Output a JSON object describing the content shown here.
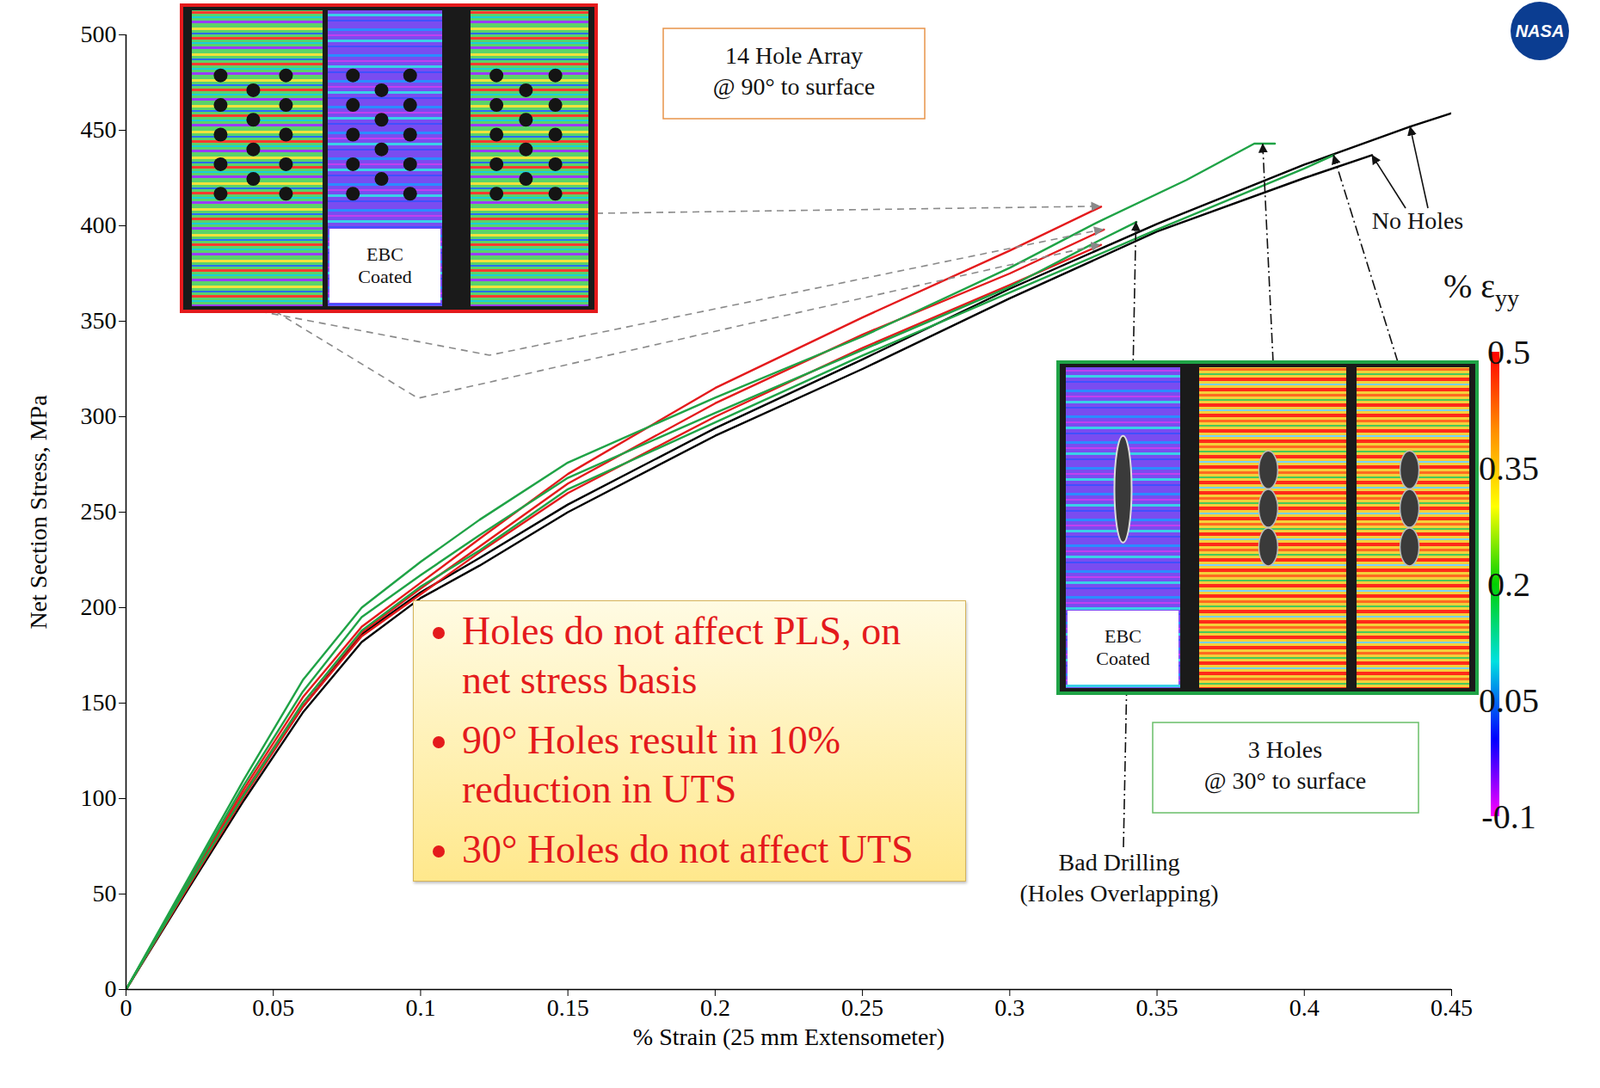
{
  "chart_data": {
    "type": "line",
    "xlabel": "% Strain (25 mm Extensometer)",
    "ylabel": "Net Section Stress, MPa",
    "xlim": [
      0,
      0.45
    ],
    "xticks": [
      0,
      0.05,
      0.1,
      0.15,
      0.2,
      0.25,
      0.3,
      0.35,
      0.4,
      0.45
    ],
    "ylim": [
      0,
      500
    ],
    "yticks": [
      0,
      50,
      100,
      150,
      200,
      250,
      300,
      350,
      400,
      450,
      500
    ],
    "grid": false,
    "series": [
      {
        "color": "#000000",
        "x": [
          0,
          0.02,
          0.04,
          0.06,
          0.08,
          0.1,
          0.12,
          0.15,
          0.2,
          0.25,
          0.3,
          0.35,
          0.4,
          0.423
        ],
        "values": [
          0,
          50,
          99,
          145,
          182,
          205,
          222,
          250,
          290,
          325,
          362,
          397,
          425,
          437
        ]
      },
      {
        "color": "#000000",
        "x": [
          0,
          0.02,
          0.04,
          0.06,
          0.08,
          0.1,
          0.12,
          0.15,
          0.2,
          0.25,
          0.3,
          0.35,
          0.4,
          0.436,
          0.45
        ],
        "values": [
          0,
          52,
          102,
          148,
          186,
          208,
          226,
          254,
          294,
          330,
          367,
          401,
          432,
          452,
          459
        ]
      },
      {
        "color": "#e41a1c",
        "x": [
          0,
          0.02,
          0.04,
          0.06,
          0.08,
          0.1,
          0.12,
          0.15,
          0.2,
          0.25,
          0.3,
          0.331
        ],
        "values": [
          0,
          53,
          105,
          153,
          190,
          213,
          236,
          270,
          315,
          352,
          387,
          410
        ]
      },
      {
        "color": "#e41a1c",
        "x": [
          0,
          0.02,
          0.04,
          0.06,
          0.08,
          0.1,
          0.12,
          0.15,
          0.2,
          0.25,
          0.3,
          0.332
        ],
        "values": [
          0,
          52,
          103,
          150,
          187,
          210,
          232,
          265,
          307,
          343,
          375,
          398
        ]
      },
      {
        "color": "#e41a1c",
        "x": [
          0,
          0.02,
          0.04,
          0.06,
          0.08,
          0.1,
          0.12,
          0.15,
          0.2,
          0.25,
          0.3,
          0.331
        ],
        "values": [
          0,
          51,
          101,
          148,
          185,
          207,
          229,
          260,
          300,
          336,
          369,
          390
        ]
      },
      {
        "color": "#1fa346",
        "x": [
          0,
          0.02,
          0.04,
          0.06,
          0.08,
          0.1,
          0.12,
          0.15,
          0.2,
          0.25,
          0.3,
          0.33,
          0.36,
          0.383,
          0.39
        ],
        "values": [
          0,
          55,
          110,
          162,
          200,
          224,
          246,
          276,
          310,
          342,
          378,
          402,
          424,
          443,
          443
        ]
      },
      {
        "color": "#1fa346",
        "x": [
          0,
          0.02,
          0.04,
          0.06,
          0.08,
          0.1,
          0.12,
          0.15,
          0.2,
          0.25,
          0.3,
          0.33,
          0.343
        ],
        "values": [
          0,
          54,
          107,
          156,
          195,
          217,
          238,
          268,
          302,
          335,
          368,
          392,
          402
        ]
      },
      {
        "color": "#1fa346",
        "x": [
          0,
          0.02,
          0.04,
          0.06,
          0.08,
          0.1,
          0.12,
          0.15,
          0.2,
          0.25,
          0.3,
          0.35,
          0.4,
          0.41
        ],
        "values": [
          0,
          52,
          102,
          150,
          188,
          211,
          230,
          262,
          297,
          332,
          365,
          398,
          430,
          437
        ]
      }
    ],
    "annotations": [
      {
        "text": [
          "14 Hole Array",
          "@ 90° to surface"
        ],
        "color": "#e8944a",
        "targets": [
          [
            0.331,
            410
          ],
          [
            0.332,
            398
          ],
          [
            0.331,
            390
          ]
        ],
        "line_style": "dashed"
      },
      {
        "text": [
          "No Holes"
        ],
        "targets": [
          [
            0.436,
            452
          ],
          [
            0.423,
            437
          ]
        ],
        "line_style": "solid"
      },
      {
        "text": [
          "Bad Drilling",
          "(Holes Overlapping)"
        ],
        "targets": [
          [
            0.343,
            402
          ]
        ],
        "line_style": "dashdot"
      },
      {
        "text": [
          "3 Holes",
          "@ 30° to surface"
        ],
        "color": "#6abf69",
        "targets": [
          [
            0.386,
            443
          ],
          [
            0.41,
            437
          ]
        ],
        "line_style": "dashdot"
      }
    ],
    "notes": [
      "Holes do not affect PLS, on net stress basis",
      "90° Holes result in 10% reduction in UTS",
      "30° Holes do not affect UTS"
    ],
    "insets": [
      {
        "color": "#e41a1c",
        "labels": [
          null,
          "EBC Coated",
          null
        ]
      },
      {
        "color": "#1fa346",
        "labels": [
          "EBC Coated",
          null,
          null
        ]
      }
    ],
    "colorbar": {
      "label": "% ε",
      "label_subscript": "yy",
      "range": [
        -0.1,
        0.5
      ],
      "ticks": [
        0.5,
        0.35,
        0.2,
        0.05,
        -0.1
      ]
    },
    "logo": "NASA"
  }
}
